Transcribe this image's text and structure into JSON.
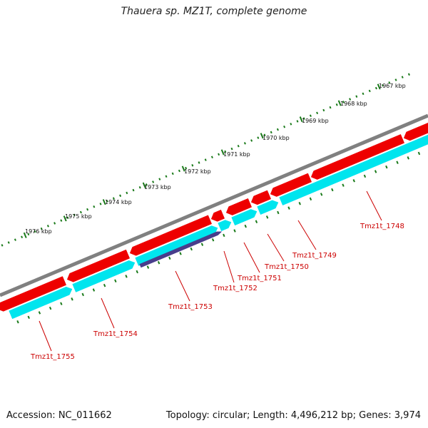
{
  "title": "Thauera sp. MZ1T, complete genome",
  "footer": {
    "accession": "Accession: NC_011662",
    "summary": "Topology: circular; Length: 4,496,212 bp; Genes: 3,974"
  },
  "colors": {
    "backbone": "#808080",
    "forward_gene": "#ee0000",
    "forward_gene_highlight": "#ff6666",
    "reverse_gene": "#00e5ee",
    "reverse_gene_highlight": "#99ffff",
    "selected_gene": "#483d8b",
    "tick": "#1a7a1a",
    "label_line": "#cc0000"
  },
  "scale_labels": [
    "1967 kbp",
    "1968 kbp",
    "1969 kbp",
    "1970 kbp",
    "1971 kbp",
    "1972 kbp",
    "1973 kbp",
    "1974 kbp",
    "1975 kbp",
    "1976 kbp"
  ],
  "gene_labels": [
    "Tmz1t_1748",
    "Tmz1t_1749",
    "Tmz1t_1750",
    "Tmz1t_1751",
    "Tmz1t_1752",
    "Tmz1t_1753",
    "Tmz1t_1754",
    "Tmz1t_1755"
  ]
}
